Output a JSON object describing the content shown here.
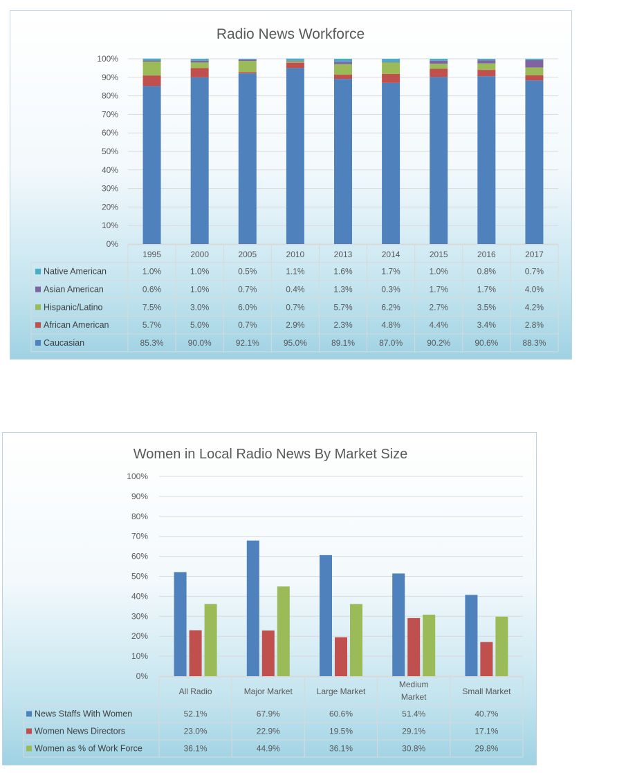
{
  "chart_data": [
    {
      "type": "bar",
      "stacked": true,
      "percent_stacked": true,
      "title": "Radio News Workforce",
      "categories": [
        "1995",
        "2000",
        "2005",
        "2010",
        "2013",
        "2014",
        "2015",
        "2016",
        "2017"
      ],
      "ylim": [
        0,
        100
      ],
      "yticks": [
        "0%",
        "10%",
        "20%",
        "30%",
        "40%",
        "50%",
        "60%",
        "70%",
        "80%",
        "90%",
        "100%"
      ],
      "grid": true,
      "legend": "data-table",
      "series": [
        {
          "name": "Native American",
          "color": "#4bacc6",
          "values": [
            1.0,
            1.0,
            0.5,
            1.1,
            1.6,
            1.7,
            1.0,
            0.8,
            0.7
          ],
          "labels": [
            "1.0%",
            "1.0%",
            "0.5%",
            "1.1%",
            "1.6%",
            "1.7%",
            "1.0%",
            "0.8%",
            "0.7%"
          ]
        },
        {
          "name": "Asian American",
          "color": "#8064a2",
          "values": [
            0.6,
            1.0,
            0.7,
            0.4,
            1.3,
            0.3,
            1.7,
            1.7,
            4.0
          ],
          "labels": [
            "0.6%",
            "1.0%",
            "0.7%",
            "0.4%",
            "1.3%",
            "0.3%",
            "1.7%",
            "1.7%",
            "4.0%"
          ]
        },
        {
          "name": "Hispanic/Latino",
          "color": "#9bbb59",
          "values": [
            7.5,
            3.0,
            6.0,
            0.7,
            5.7,
            6.2,
            2.7,
            3.5,
            4.2
          ],
          "labels": [
            "7.5%",
            "3.0%",
            "6.0%",
            "0.7%",
            "5.7%",
            "6.2%",
            "2.7%",
            "3.5%",
            "4.2%"
          ]
        },
        {
          "name": "African American",
          "color": "#c0504d",
          "values": [
            5.7,
            5.0,
            0.7,
            2.9,
            2.3,
            4.8,
            4.4,
            3.4,
            2.8
          ],
          "labels": [
            "5.7%",
            "5.0%",
            "0.7%",
            "2.9%",
            "2.3%",
            "4.8%",
            "4.4%",
            "3.4%",
            "2.8%"
          ]
        },
        {
          "name": "Caucasian",
          "color": "#4f81bd",
          "values": [
            85.3,
            90.0,
            92.1,
            95.0,
            89.1,
            87.0,
            90.2,
            90.6,
            88.3
          ],
          "labels": [
            "85.3%",
            "90.0%",
            "92.1%",
            "95.0%",
            "89.1%",
            "87.0%",
            "90.2%",
            "90.6%",
            "88.3%"
          ]
        }
      ]
    },
    {
      "type": "bar",
      "stacked": false,
      "title": "Women in Local Radio News By Market Size",
      "categories": [
        [
          "All Radio"
        ],
        [
          "Major Market"
        ],
        [
          "Large Market"
        ],
        [
          "Medium",
          "Market"
        ],
        [
          "Small Market"
        ]
      ],
      "ylim": [
        0,
        100
      ],
      "yticks": [
        "0%",
        "10%",
        "20%",
        "30%",
        "40%",
        "50%",
        "60%",
        "70%",
        "80%",
        "90%",
        "100%"
      ],
      "grid": true,
      "legend": "data-table",
      "series": [
        {
          "name": "News Staffs With Women",
          "color": "#4f81bd",
          "values": [
            52.1,
            67.9,
            60.6,
            51.4,
            40.7
          ],
          "labels": [
            "52.1%",
            "67.9%",
            "60.6%",
            "51.4%",
            "40.7%"
          ]
        },
        {
          "name": "Women News Directors",
          "color": "#c0504d",
          "values": [
            23.0,
            22.9,
            19.5,
            29.1,
            17.1
          ],
          "labels": [
            "23.0%",
            "22.9%",
            "19.5%",
            "29.1%",
            "17.1%"
          ]
        },
        {
          "name": "Women as % of Work Force",
          "color": "#9bbb59",
          "values": [
            36.1,
            44.9,
            36.1,
            30.8,
            29.8
          ],
          "labels": [
            "36.1%",
            "44.9%",
            "36.1%",
            "30.8%",
            "29.8%"
          ]
        }
      ]
    }
  ]
}
